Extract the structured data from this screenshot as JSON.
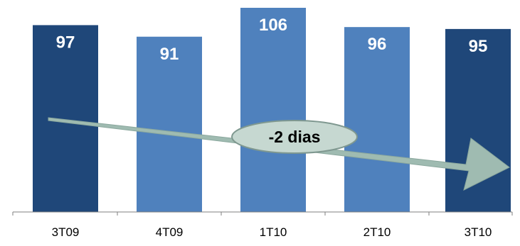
{
  "chart_data": {
    "type": "bar",
    "categories": [
      "3T09",
      "4T09",
      "1T10",
      "2T10",
      "3T10"
    ],
    "values": [
      97,
      91,
      106,
      96,
      95
    ],
    "ylim": [
      0,
      106
    ],
    "grid": false,
    "bar_colors": [
      "#1f4779",
      "#4f81bd",
      "#4f81bd",
      "#4f81bd",
      "#1f4779"
    ],
    "annotation": {
      "text": "-2 dias",
      "arrow_color": "#9fbbb1",
      "ellipse_fill": "#c6d8d1",
      "ellipse_stroke": "#7f9890"
    }
  }
}
